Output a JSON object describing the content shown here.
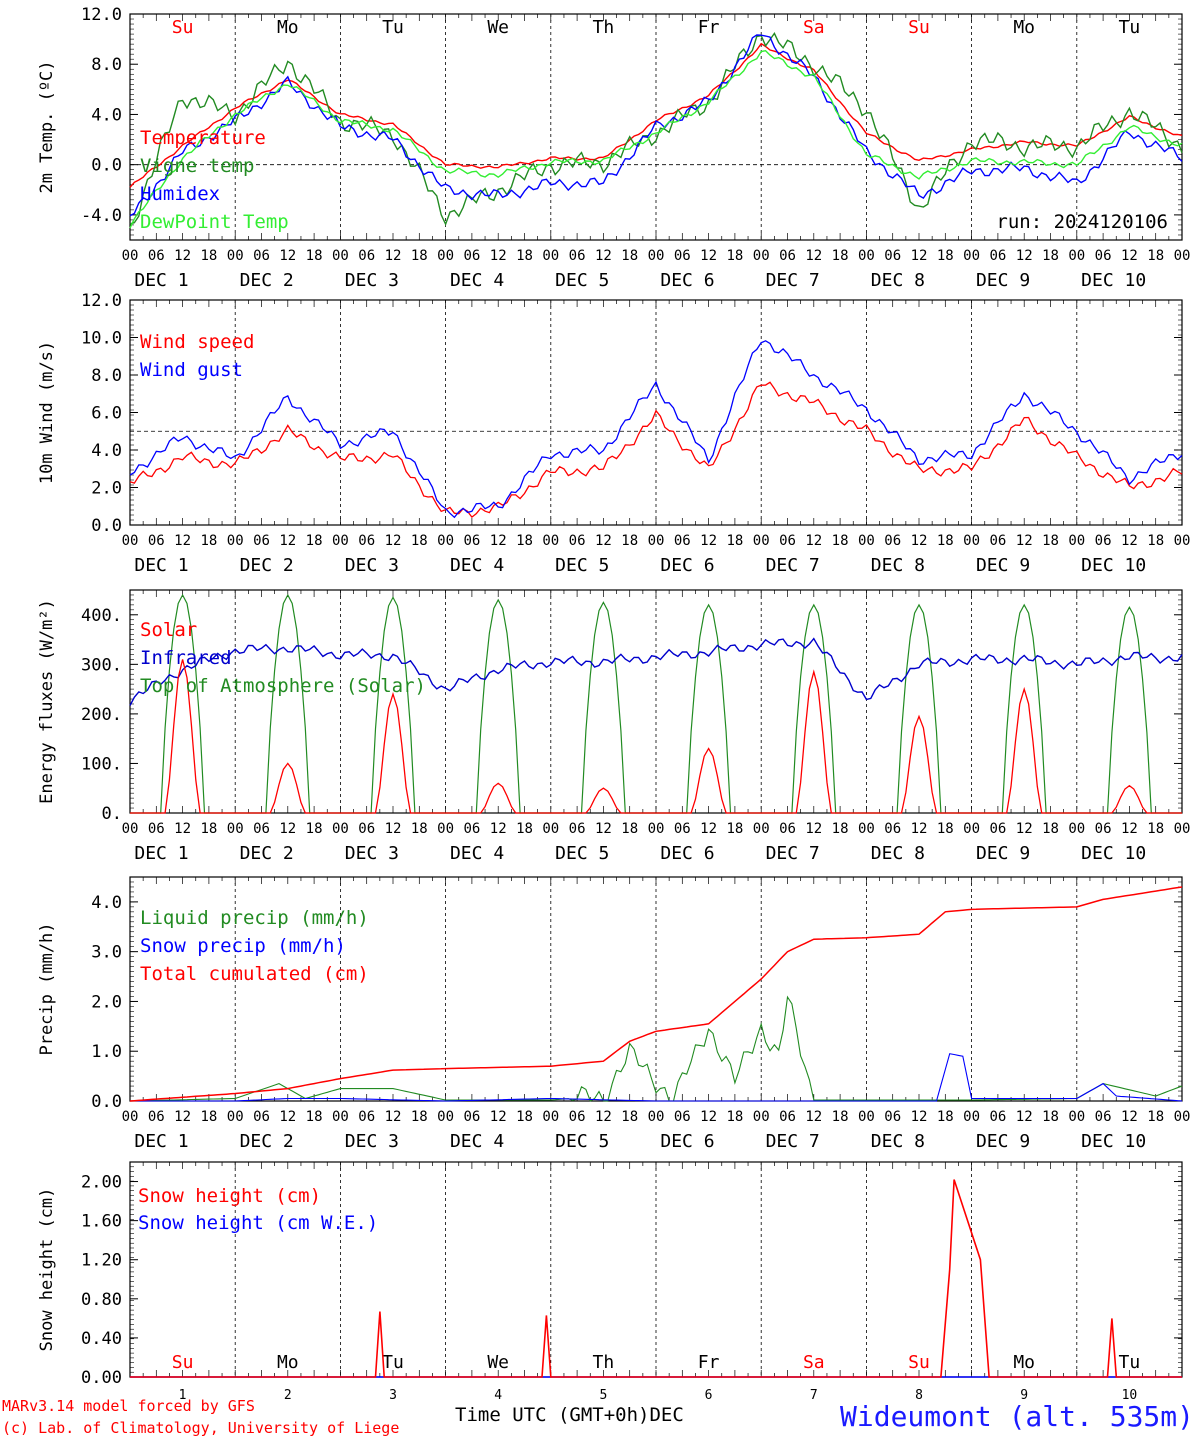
{
  "run_label": "run: 2024120106",
  "x_axis": {
    "hour_ticks": [
      "00",
      "06",
      "12",
      "18"
    ],
    "final_tick": "00",
    "date_labels": [
      "DEC  1",
      "DEC  2",
      "DEC  3",
      "DEC  4",
      "DEC  5",
      "DEC  6",
      "DEC  7",
      "DEC  8",
      "DEC  9",
      "DEC 10"
    ],
    "weekdays": [
      "Su",
      "Mo",
      "Tu",
      "We",
      "Th",
      "Fr",
      "Sa",
      "Su",
      "Mo",
      "Tu"
    ],
    "weekday_colors": [
      "#ff0000",
      "#000000",
      "#000000",
      "#000000",
      "#000000",
      "#000000",
      "#ff0000",
      "#ff0000",
      "#000000",
      "#000000"
    ],
    "day_numbers": [
      "1",
      "2",
      "3",
      "4",
      "5",
      "6",
      "7",
      "8",
      "9",
      "10"
    ],
    "bottom_title": "Time UTC (GMT+0h)",
    "bottom_month": "DEC"
  },
  "footer": {
    "model_line": "MARv3.14 model forced by GFS",
    "credit_line": "(c) Lab. of Climatology, University of Liege",
    "station": "Wideumont (alt. 535m)"
  },
  "chart_data": [
    {
      "type": "line",
      "ylabel": "2m Temp. (ºC)",
      "ylim": [
        -6,
        12
      ],
      "yticks": [
        "12.0",
        "8.0",
        "4.0",
        "0.0",
        "-4.0"
      ],
      "ytick_values": [
        12,
        8,
        4,
        0,
        -4
      ],
      "reference_line": 0,
      "x_hours": [
        0,
        12,
        24,
        36,
        48,
        60,
        72,
        84,
        96,
        108,
        120,
        132,
        144,
        156,
        168,
        180,
        192,
        204,
        216,
        228,
        240
      ],
      "series": [
        {
          "name": "Temperature",
          "color": "#ff0000",
          "values": [
            -1.8,
            1.5,
            4.5,
            6.8,
            4.0,
            3.2,
            0.0,
            -0.2,
            0.5,
            0.5,
            3.5,
            5.5,
            9.5,
            7.5,
            2.5,
            0.3,
            1.2,
            1.8,
            1.5,
            3.8,
            2.2
          ]
        },
        {
          "name": "Vigne temp",
          "color": "#228b22",
          "values": [
            -5.0,
            5.5,
            4.0,
            8.3,
            3.5,
            2.5,
            -4.0,
            -2.0,
            0.0,
            0.2,
            2.5,
            5.0,
            10.5,
            8.0,
            4.5,
            -3.5,
            2.0,
            1.5,
            1.5,
            4.3,
            1.5
          ]
        },
        {
          "name": "Humidex",
          "color": "#0000ff",
          "values": [
            -4.2,
            1.0,
            3.5,
            6.5,
            3.0,
            2.0,
            -2.0,
            -2.5,
            -1.5,
            -1.5,
            3.0,
            5.0,
            10.5,
            7.0,
            1.0,
            -2.5,
            -0.5,
            -0.3,
            -1.5,
            2.6,
            0.5
          ]
        },
        {
          "name": "DewPoint Temp",
          "color": "#33ee33",
          "values": [
            -4.8,
            0.5,
            4.0,
            6.5,
            3.5,
            2.8,
            -0.5,
            -0.8,
            0.2,
            0.3,
            2.5,
            5.0,
            9.0,
            7.0,
            0.8,
            -1.0,
            0.3,
            0.2,
            0.0,
            3.0,
            1.5
          ]
        }
      ]
    },
    {
      "type": "line",
      "ylabel": "10m Wind (m/s)",
      "ylim": [
        0,
        12
      ],
      "yticks": [
        "12.0",
        "10.0",
        "8.0",
        "6.0",
        "4.0",
        "2.0",
        "0.0"
      ],
      "ytick_values": [
        12,
        10,
        8,
        6,
        4,
        2,
        0
      ],
      "reference_line": 5,
      "x_hours": [
        0,
        12,
        24,
        36,
        48,
        60,
        72,
        84,
        96,
        108,
        120,
        132,
        144,
        156,
        168,
        180,
        192,
        204,
        216,
        228,
        240
      ],
      "series": [
        {
          "name": "Wind speed",
          "color": "#ff0000",
          "values": [
            2.2,
            3.6,
            3.2,
            5.0,
            3.5,
            3.7,
            0.6,
            0.9,
            2.8,
            3.0,
            5.8,
            2.9,
            7.5,
            6.5,
            5.0,
            2.9,
            3.0,
            5.6,
            3.6,
            2.0,
            2.8
          ]
        },
        {
          "name": "Wind gust",
          "color": "#0000ff",
          "values": [
            2.8,
            4.7,
            3.5,
            6.8,
            4.3,
            5.0,
            0.7,
            1.0,
            3.8,
            4.0,
            7.5,
            3.5,
            10.0,
            8.0,
            6.2,
            3.5,
            3.8,
            7.0,
            5.0,
            2.5,
            3.9
          ]
        }
      ]
    },
    {
      "type": "line",
      "ylabel": "Energy fluxes (W/m²)",
      "ylim": [
        0,
        450
      ],
      "yticks": [
        "400.",
        "300.",
        "200.",
        "100.",
        "0."
      ],
      "ytick_values": [
        400,
        300,
        200,
        100,
        0
      ],
      "series": [
        {
          "name": "Solar",
          "color": "#ff0000",
          "daily_peaks": [
            310,
            100,
            240,
            60,
            50,
            130,
            285,
            195,
            250,
            55
          ]
        },
        {
          "name": "Infrared",
          "color": "#0000cc",
          "x_hours": [
            0,
            12,
            24,
            36,
            48,
            60,
            72,
            84,
            96,
            108,
            120,
            132,
            144,
            156,
            168,
            180,
            192,
            204,
            216,
            228,
            240
          ],
          "values": [
            228,
            290,
            328,
            333,
            320,
            318,
            250,
            290,
            305,
            305,
            315,
            325,
            340,
            345,
            230,
            300,
            310,
            310,
            300,
            315,
            313
          ]
        },
        {
          "name": "Top of Atmosphere (Solar)",
          "color": "#228b22",
          "daily_peaks": [
            440,
            440,
            435,
            430,
            425,
            420,
            420,
            420,
            420,
            415
          ]
        }
      ]
    },
    {
      "type": "line",
      "ylabel": "Precip (mm/h)",
      "ylim": [
        0,
        4.5
      ],
      "yticks": [
        "4.0",
        "3.0",
        "2.0",
        "1.0",
        "0.0"
      ],
      "ytick_values": [
        4,
        3,
        2,
        1,
        0
      ],
      "series": [
        {
          "name": "Liquid precip (mm/h)",
          "color": "#228b22",
          "x_hours": [
            0,
            24,
            34,
            40,
            48,
            60,
            72,
            96,
            108,
            114,
            118,
            124,
            132,
            138,
            144,
            148,
            150,
            156,
            168,
            192,
            216,
            222,
            234,
            240
          ],
          "values": [
            0,
            0.05,
            0.35,
            0.05,
            0.25,
            0.25,
            0.02,
            0.02,
            0.1,
            0.95,
            0.6,
            0.02,
            1.5,
            0.4,
            1.5,
            0.9,
            2.05,
            0.02,
            0.02,
            0.02,
            0.05,
            0.35,
            0.1,
            0.3
          ]
        },
        {
          "name": "Snow precip (mm/h)",
          "color": "#0000ff",
          "x_hours": [
            0,
            24,
            36,
            48,
            72,
            96,
            120,
            144,
            168,
            184,
            187,
            190,
            192,
            216,
            222,
            225,
            240
          ],
          "values": [
            0,
            0,
            0.05,
            0.05,
            0,
            0.05,
            0,
            0,
            0,
            0,
            0.95,
            0.9,
            0.05,
            0.05,
            0.35,
            0.1,
            0
          ]
        },
        {
          "name": "Total cumulated (cm)",
          "color": "#ff0000",
          "x_hours": [
            0,
            24,
            36,
            48,
            60,
            72,
            96,
            108,
            114,
            120,
            132,
            144,
            150,
            156,
            168,
            180,
            186,
            192,
            216,
            222,
            240
          ],
          "values": [
            0,
            0.15,
            0.25,
            0.45,
            0.62,
            0.65,
            0.7,
            0.8,
            1.2,
            1.4,
            1.55,
            2.45,
            3.0,
            3.25,
            3.28,
            3.35,
            3.8,
            3.85,
            3.9,
            4.05,
            4.3
          ]
        }
      ]
    },
    {
      "type": "line",
      "ylabel": "Snow height (cm)",
      "ylim": [
        0,
        2.2
      ],
      "yticks": [
        "2.00",
        "1.60",
        "1.20",
        "0.80",
        "0.40",
        "0.00"
      ],
      "ytick_values": [
        2.0,
        1.6,
        1.2,
        0.8,
        0.4,
        0.0
      ],
      "series": [
        {
          "name": "Snow height (cm)",
          "color": "#ff0000",
          "x_hours": [
            0,
            56,
            57,
            58,
            94,
            95,
            96,
            185,
            187,
            188,
            194,
            196,
            223,
            224,
            225,
            240
          ],
          "values": [
            0,
            0,
            0.67,
            0,
            0,
            0.63,
            0,
            0,
            1.1,
            2.02,
            1.2,
            0,
            0,
            0.6,
            0,
            0
          ]
        },
        {
          "name": "Snow height (cm W.E.)",
          "color": "#0000ff",
          "x_hours": [
            0,
            240
          ],
          "values": [
            0,
            0
          ]
        }
      ]
    }
  ]
}
